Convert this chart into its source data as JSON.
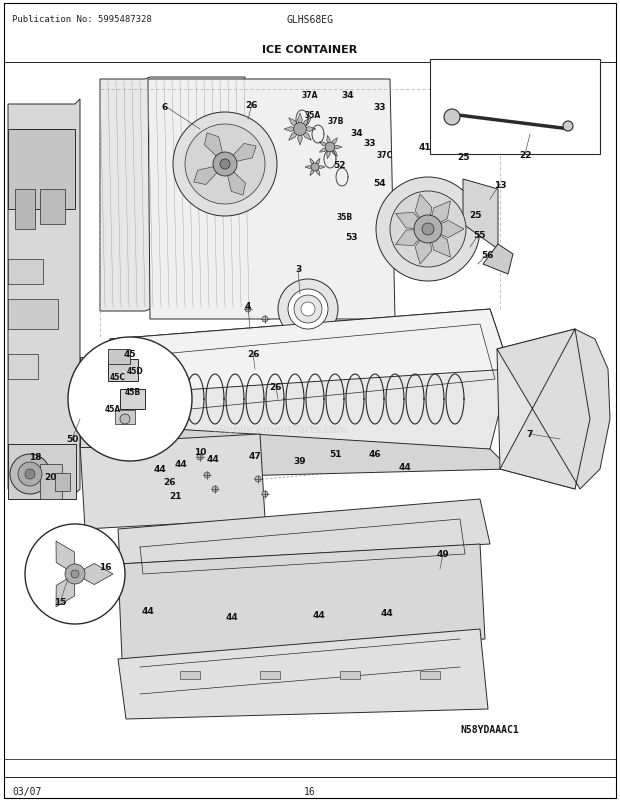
{
  "title": "ICE CONTAINER",
  "publication": "Publication No: 5995487328",
  "model": "GLHS68EG",
  "diagram_id": "N58YDAAAC1",
  "date": "03/07",
  "page": "16",
  "bg_color": "#ffffff",
  "border_color": "#000000",
  "line_color": "#2a2a2a",
  "figsize": [
    6.2,
    8.03
  ],
  "dpi": 100,
  "labels": [
    [
      165,
      107,
      "6"
    ],
    [
      252,
      105,
      "26"
    ],
    [
      310,
      96,
      "37A"
    ],
    [
      348,
      96,
      "34"
    ],
    [
      380,
      107,
      "33"
    ],
    [
      313,
      115,
      "35A"
    ],
    [
      336,
      122,
      "37B"
    ],
    [
      357,
      133,
      "34"
    ],
    [
      370,
      143,
      "33"
    ],
    [
      385,
      155,
      "37C"
    ],
    [
      340,
      165,
      "52"
    ],
    [
      380,
      183,
      "54"
    ],
    [
      425,
      148,
      "41"
    ],
    [
      463,
      158,
      "25"
    ],
    [
      500,
      185,
      "13"
    ],
    [
      475,
      215,
      "25"
    ],
    [
      479,
      235,
      "55"
    ],
    [
      487,
      255,
      "56"
    ],
    [
      345,
      218,
      "35B"
    ],
    [
      352,
      237,
      "53"
    ],
    [
      298,
      270,
      "3"
    ],
    [
      248,
      307,
      "4"
    ],
    [
      253,
      355,
      "26"
    ],
    [
      276,
      388,
      "26"
    ],
    [
      130,
      355,
      "45"
    ],
    [
      118,
      378,
      "45C"
    ],
    [
      133,
      393,
      "45B"
    ],
    [
      113,
      410,
      "45A"
    ],
    [
      135,
      372,
      "45D"
    ],
    [
      72,
      440,
      "50"
    ],
    [
      181,
      465,
      "44"
    ],
    [
      213,
      460,
      "44"
    ],
    [
      255,
      457,
      "47"
    ],
    [
      300,
      462,
      "39"
    ],
    [
      336,
      455,
      "51"
    ],
    [
      375,
      455,
      "46"
    ],
    [
      405,
      468,
      "44"
    ],
    [
      35,
      458,
      "18"
    ],
    [
      50,
      478,
      "20"
    ],
    [
      160,
      470,
      "44"
    ],
    [
      170,
      483,
      "26"
    ],
    [
      176,
      497,
      "21"
    ],
    [
      530,
      435,
      "7"
    ],
    [
      443,
      555,
      "49"
    ],
    [
      105,
      568,
      "16"
    ],
    [
      60,
      603,
      "15"
    ],
    [
      148,
      612,
      "44"
    ],
    [
      232,
      618,
      "44"
    ],
    [
      319,
      616,
      "44"
    ],
    [
      387,
      614,
      "44"
    ],
    [
      200,
      453,
      "10"
    ],
    [
      525,
      155,
      "22"
    ]
  ]
}
